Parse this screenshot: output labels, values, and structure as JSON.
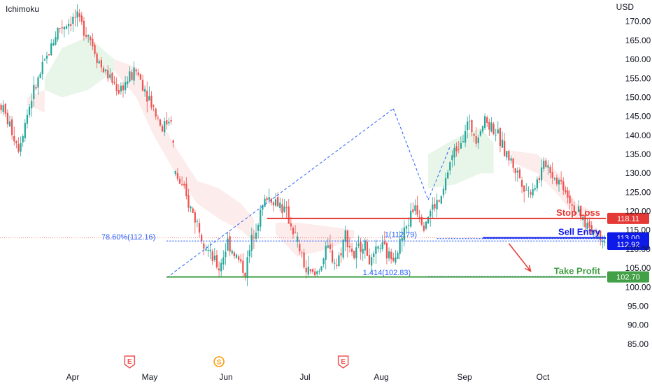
{
  "indicator": "Ichimoku",
  "currency": "USD",
  "colors": {
    "up": "#26a69a",
    "down": "#ef5350",
    "cloud_bull": "#e8f5e9",
    "cloud_bear": "#fdecec",
    "stop": "#e53935",
    "entry": "#0d1ae8",
    "target": "#43a047",
    "fib": "#2962ff",
    "event": "#ef5350",
    "split": "#ff9800"
  },
  "chart_data": {
    "type": "candlestick",
    "ylim": [
      80,
      174
    ],
    "y_ticks": [
      "170.00",
      "165.00",
      "160.00",
      "155.00",
      "150.00",
      "145.00",
      "140.00",
      "135.00",
      "130.00",
      "125.00",
      "120.00",
      "115.00",
      "110.00",
      "105.00",
      "100.00",
      "95.00",
      "90.00",
      "85.00"
    ],
    "x_ticks": [
      "Apr",
      "May",
      "Jun",
      "Jul",
      "Aug",
      "Sep",
      "Oct"
    ],
    "anchors": [
      {
        "x": 0,
        "y": 148
      },
      {
        "x": 8,
        "y": 137
      },
      {
        "x": 14,
        "y": 150
      },
      {
        "x": 26,
        "y": 168
      },
      {
        "x": 34,
        "y": 171
      },
      {
        "x": 40,
        "y": 167
      },
      {
        "x": 46,
        "y": 158
      },
      {
        "x": 54,
        "y": 152
      },
      {
        "x": 62,
        "y": 157
      },
      {
        "x": 68,
        "y": 150
      },
      {
        "x": 74,
        "y": 142
      },
      {
        "x": 78,
        "y": 145
      },
      {
        "x": 80,
        "y": 130
      },
      {
        "x": 86,
        "y": 122
      },
      {
        "x": 90,
        "y": 117
      },
      {
        "x": 96,
        "y": 108
      },
      {
        "x": 100,
        "y": 105
      },
      {
        "x": 104,
        "y": 112
      },
      {
        "x": 108,
        "y": 108
      },
      {
        "x": 112,
        "y": 104
      },
      {
        "x": 116,
        "y": 115
      },
      {
        "x": 122,
        "y": 124
      },
      {
        "x": 128,
        "y": 122
      },
      {
        "x": 132,
        "y": 118
      },
      {
        "x": 136,
        "y": 112
      },
      {
        "x": 140,
        "y": 104
      },
      {
        "x": 144,
        "y": 103
      },
      {
        "x": 150,
        "y": 110
      },
      {
        "x": 154,
        "y": 106
      },
      {
        "x": 158,
        "y": 114
      },
      {
        "x": 162,
        "y": 108
      },
      {
        "x": 166,
        "y": 112
      },
      {
        "x": 170,
        "y": 106
      },
      {
        "x": 174,
        "y": 111
      },
      {
        "x": 178,
        "y": 108
      },
      {
        "x": 182,
        "y": 110
      },
      {
        "x": 186,
        "y": 116
      },
      {
        "x": 190,
        "y": 122
      },
      {
        "x": 194,
        "y": 117
      },
      {
        "x": 198,
        "y": 121
      },
      {
        "x": 202,
        "y": 123
      },
      {
        "x": 206,
        "y": 133
      },
      {
        "x": 210,
        "y": 138
      },
      {
        "x": 214,
        "y": 143
      },
      {
        "x": 218,
        "y": 140
      },
      {
        "x": 222,
        "y": 144
      },
      {
        "x": 226,
        "y": 142
      },
      {
        "x": 230,
        "y": 137
      },
      {
        "x": 234,
        "y": 133
      },
      {
        "x": 238,
        "y": 129
      },
      {
        "x": 242,
        "y": 125
      },
      {
        "x": 246,
        "y": 128
      },
      {
        "x": 250,
        "y": 133
      },
      {
        "x": 254,
        "y": 129
      },
      {
        "x": 258,
        "y": 127
      },
      {
        "x": 262,
        "y": 122
      },
      {
        "x": 266,
        "y": 118
      },
      {
        "x": 270,
        "y": 116
      },
      {
        "x": 274,
        "y": 114
      },
      {
        "x": 278,
        "y": 113
      }
    ],
    "candle_count": 278,
    "ichimoku_cloud": [
      {
        "trend": "bull",
        "upper": [
          [
            20,
            155
          ],
          [
            28,
            163
          ],
          [
            40,
            166
          ],
          [
            52,
            160
          ]
        ],
        "lower": [
          [
            20,
            152
          ],
          [
            28,
            150
          ],
          [
            40,
            152
          ],
          [
            52,
            157
          ]
        ]
      },
      {
        "trend": "bear",
        "upper": [
          [
            12,
            150
          ],
          [
            20,
            152
          ]
        ],
        "lower": [
          [
            12,
            148
          ],
          [
            20,
            146
          ]
        ]
      },
      {
        "trend": "bear",
        "upper": [
          [
            52,
            160
          ],
          [
            62,
            158
          ],
          [
            70,
            147
          ],
          [
            80,
            137
          ],
          [
            90,
            128
          ],
          [
            100,
            126
          ],
          [
            110,
            122
          ],
          [
            116,
            118
          ]
        ],
        "lower": [
          [
            52,
            157
          ],
          [
            62,
            150
          ],
          [
            70,
            140
          ],
          [
            80,
            130
          ],
          [
            90,
            122
          ],
          [
            100,
            118
          ],
          [
            110,
            115
          ],
          [
            116,
            112
          ]
        ]
      },
      {
        "trend": "bear",
        "upper": [
          [
            126,
            117
          ],
          [
            136,
            117
          ],
          [
            150,
            116
          ],
          [
            162,
            115
          ]
        ],
        "lower": [
          [
            126,
            114
          ],
          [
            136,
            108
          ],
          [
            150,
            110
          ],
          [
            162,
            113
          ]
        ]
      },
      {
        "trend": "bull",
        "upper": [
          [
            196,
            135
          ],
          [
            208,
            139
          ],
          [
            220,
            142
          ],
          [
            226,
            138
          ]
        ],
        "lower": [
          [
            196,
            126
          ],
          [
            208,
            127
          ],
          [
            220,
            130
          ],
          [
            226,
            130
          ]
        ]
      },
      {
        "trend": "bear",
        "upper": [
          [
            234,
            136
          ],
          [
            246,
            135
          ],
          [
            256,
            130
          ],
          [
            264,
            122
          ],
          [
            272,
            120
          ]
        ],
        "lower": [
          [
            234,
            133
          ],
          [
            246,
            130
          ],
          [
            256,
            124
          ],
          [
            264,
            118
          ],
          [
            272,
            118
          ]
        ]
      }
    ],
    "fib_lines": [
      {
        "from": {
          "x": 76,
          "y": 102.5
        },
        "to": {
          "x": 180,
          "y": 147
        }
      },
      {
        "from": {
          "x": 180,
          "y": 147
        },
        "to": {
          "x": 196,
          "y": 123
        }
      },
      {
        "from": {
          "x": 196,
          "y": 123
        },
        "to": {
          "x": 206,
          "y": 137
        }
      }
    ],
    "levels": [
      {
        "name": "Stop Loss",
        "value": 118.11,
        "label": "118.11",
        "x_start": 122,
        "color_key": "stop"
      },
      {
        "name": "Sell Entry",
        "value": 113.0,
        "label": "113.00",
        "x_start": 221,
        "color_key": "entry"
      },
      {
        "name": "Take Profit",
        "value": 102.7,
        "label": "102.70",
        "x_start": 76,
        "color_key": "target"
      }
    ],
    "extra_price_label": {
      "value": 112.92,
      "label": "112.92"
    },
    "fib_annotations": [
      {
        "text": "78.60%(112.16)",
        "value": 112.16,
        "x_label": 46,
        "x_line_start": 76,
        "x_line_end": 278
      },
      {
        "text": "1(112.79)",
        "value": 112.79,
        "x_label": 176,
        "x_line_start": 200,
        "x_line_end": 278
      },
      {
        "text": "1.414(102.83)",
        "value": 102.83,
        "x_label": 166,
        "x_line_start": 196,
        "x_line_end": 278
      }
    ],
    "arrow": {
      "from": {
        "x": 233,
        "y": 111.5
      },
      "to": {
        "x": 243,
        "y": 104.2
      }
    },
    "event_markers": [
      {
        "label": "E",
        "x": 59,
        "type": "earnings"
      },
      {
        "label": "S",
        "x": 100,
        "type": "split"
      },
      {
        "label": "E",
        "x": 157,
        "type": "earnings"
      }
    ],
    "close_dotted": 113.0
  }
}
